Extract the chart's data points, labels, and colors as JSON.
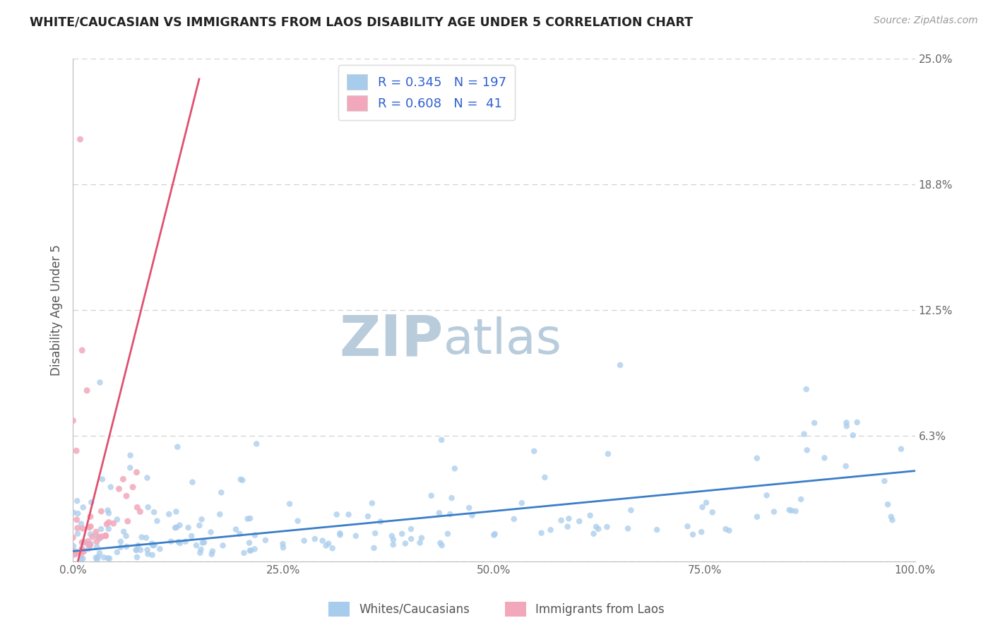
{
  "title": "WHITE/CAUCASIAN VS IMMIGRANTS FROM LAOS DISABILITY AGE UNDER 5 CORRELATION CHART",
  "source": "Source: ZipAtlas.com",
  "ylabel": "Disability Age Under 5",
  "xlim": [
    0,
    100
  ],
  "ylim": [
    0,
    25
  ],
  "yticks": [
    0,
    6.25,
    12.5,
    18.75,
    25.0
  ],
  "ytick_labels": [
    "",
    "6.3%",
    "12.5%",
    "18.8%",
    "25.0%"
  ],
  "xtick_labels": [
    "0.0%",
    "25.0%",
    "50.0%",
    "75.0%",
    "100.0%"
  ],
  "xticks": [
    0,
    25,
    50,
    75,
    100
  ],
  "blue_R": 0.345,
  "blue_N": 197,
  "pink_R": 0.608,
  "pink_N": 41,
  "blue_color": "#A8CCEC",
  "pink_color": "#F2A8BA",
  "blue_line_color": "#3A7EC8",
  "pink_line_color": "#E05070",
  "legend_R_color": "#3060D0",
  "watermark_zip": "ZIP",
  "watermark_atlas": "atlas",
  "watermark_color_zip": "#B8CCDC",
  "watermark_color_atlas": "#B8CCDC",
  "background_color": "#FFFFFF",
  "title_color": "#222222",
  "grid_color": "#CCCCCC",
  "legend_label_blue": "Whites/Caucasians",
  "legend_label_pink": "Immigrants from Laos"
}
